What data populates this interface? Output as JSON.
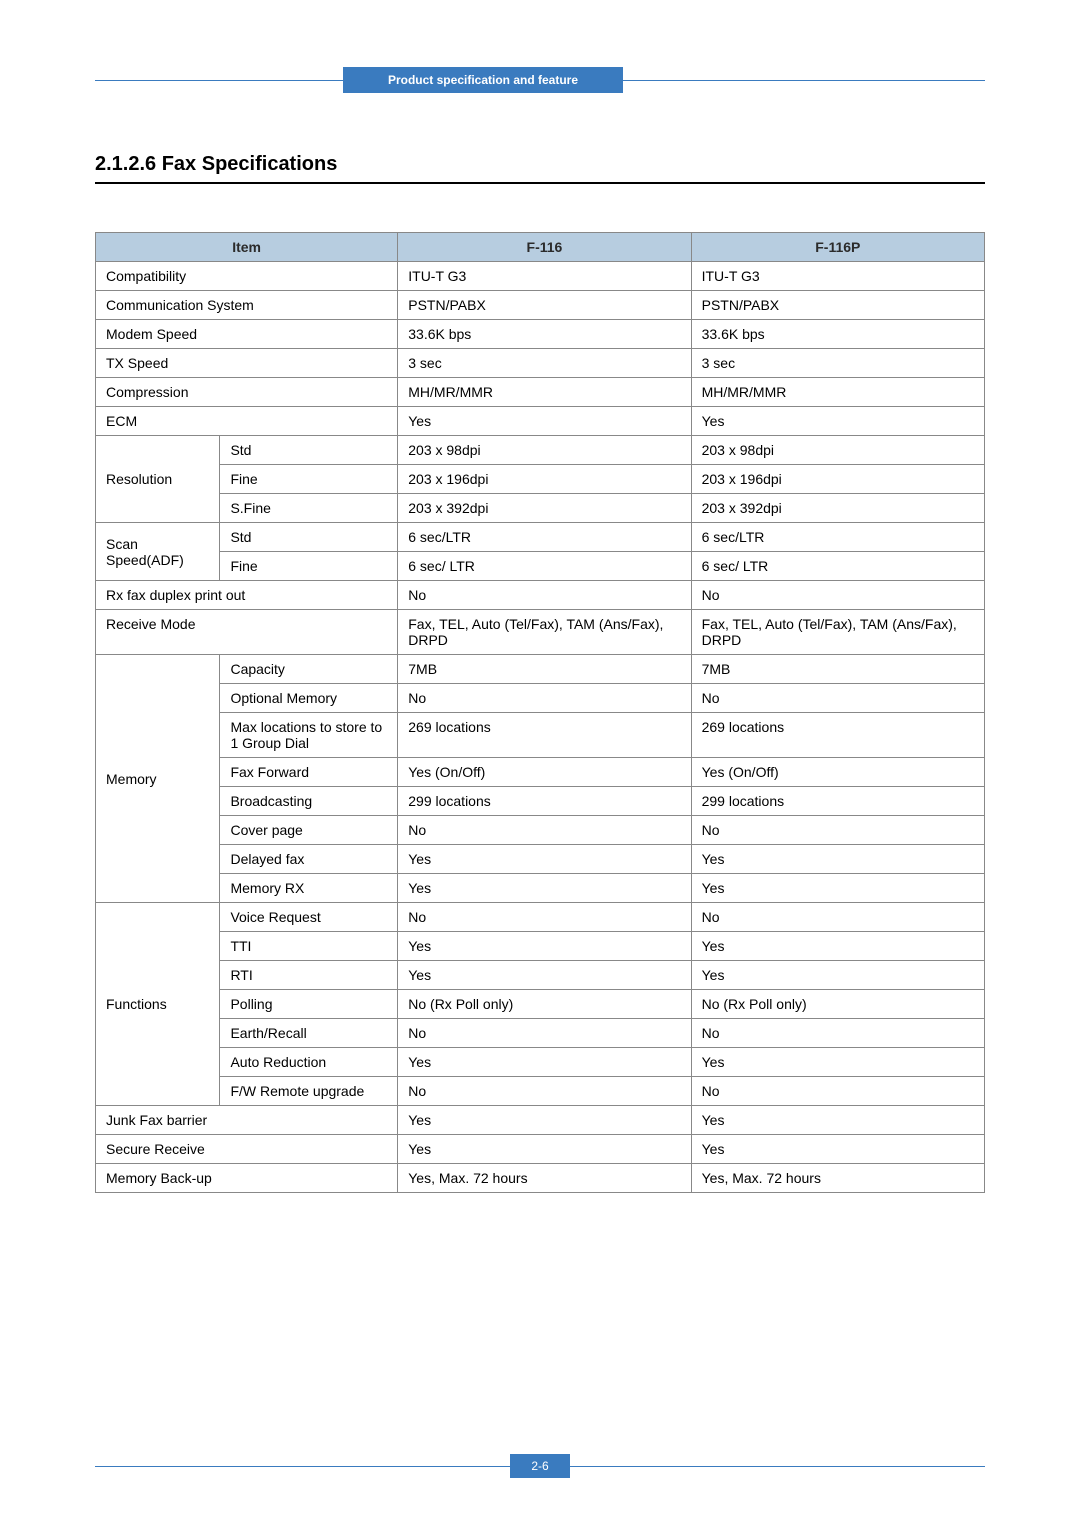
{
  "header": {
    "ribbon": "Product specification and feature"
  },
  "section": {
    "number_title": "2.1.2.6 Fax Specifications"
  },
  "table": {
    "head": {
      "item": "Item",
      "col1": "F-116",
      "col2": "F-116P"
    }
  },
  "rows": {
    "compat": {
      "label": "Compatibility",
      "v1": "ITU-T G3",
      "v2": "ITU-T G3"
    },
    "comm": {
      "label": "Communication System",
      "v1": "PSTN/PABX",
      "v2": "PSTN/PABX"
    },
    "modem": {
      "label": "Modem Speed",
      "v1": "33.6K bps",
      "v2": "33.6K bps"
    },
    "tx": {
      "label": "TX Speed",
      "v1": "3 sec",
      "v2": "3 sec"
    },
    "comp": {
      "label": "Compression",
      "v1": "MH/MR/MMR",
      "v2": "MH/MR/MMR"
    },
    "ecm": {
      "label": "ECM",
      "v1": "Yes",
      "v2": "Yes"
    },
    "res": {
      "label": "Resolution",
      "std": {
        "label": "Std",
        "v1": "203 x 98dpi",
        "v2": "203 x 98dpi"
      },
      "fine": {
        "label": "Fine",
        "v1": "203 x 196dpi",
        "v2": "203 x 196dpi"
      },
      "sfine": {
        "label": "S.Fine",
        "v1": "203 x 392dpi",
        "v2": "203 x 392dpi"
      }
    },
    "scan": {
      "label": "Scan Speed(ADF)",
      "std": {
        "label": "Std",
        "v1": "6 sec/LTR",
        "v2": "6 sec/LTR"
      },
      "fine": {
        "label": "Fine",
        "v1": "6 sec/ LTR",
        "v2": "6 sec/ LTR"
      }
    },
    "duplex": {
      "label": "Rx fax duplex print out",
      "v1": "No",
      "v2": "No"
    },
    "rxmode": {
      "label": "Receive Mode",
      "v1": "Fax, TEL,  Auto (Tel/Fax), TAM (Ans/Fax), DRPD",
      "v2": "Fax, TEL,  Auto (Tel/Fax), TAM (Ans/Fax), DRPD"
    },
    "mem": {
      "label": "Memory",
      "cap": {
        "label": "Capacity",
        "v1": "7MB",
        "v2": "7MB"
      },
      "opt": {
        "label": "Optional Memory",
        "v1": "No",
        "v2": "No"
      },
      "maxloc": {
        "label": "Max locations to store to 1 Group Dial",
        "v1": "269 locations",
        "v2": "269 locations"
      },
      "fwd": {
        "label": "Fax Forward",
        "v1": "Yes (On/Off)",
        "v2": "Yes (On/Off)"
      },
      "bcast": {
        "label": "Broadcasting",
        "v1": "299 locations",
        "v2": "299 locations"
      },
      "cover": {
        "label": "Cover page",
        "v1": "No",
        "v2": "No"
      },
      "delay": {
        "label": "Delayed fax",
        "v1": "Yes",
        "v2": "Yes"
      },
      "mrx": {
        "label": "Memory RX",
        "v1": "Yes",
        "v2": "Yes"
      }
    },
    "func": {
      "label": "Functions",
      "voice": {
        "label": "Voice Request",
        "v1": "No",
        "v2": "No"
      },
      "tti": {
        "label": "TTI",
        "v1": "Yes",
        "v2": "Yes"
      },
      "rti": {
        "label": "RTI",
        "v1": "Yes",
        "v2": "Yes"
      },
      "poll": {
        "label": "Polling",
        "v1": "No (Rx Poll only)",
        "v2": "No (Rx Poll only)"
      },
      "earth": {
        "label": "Earth/Recall",
        "v1": "No",
        "v2": "No"
      },
      "auto": {
        "label": "Auto Reduction",
        "v1": "Yes",
        "v2": "Yes"
      },
      "fw": {
        "label": "F/W Remote upgrade",
        "v1": "No",
        "v2": "No"
      }
    },
    "junk": {
      "label": "Junk Fax barrier",
      "v1": "Yes",
      "v2": "Yes"
    },
    "secure": {
      "label": "Secure Receive",
      "v1": "Yes",
      "v2": "Yes"
    },
    "backup": {
      "label": "Memory Back-up",
      "v1": "Yes, Max. 72 hours",
      "v2": "Yes, Max. 72 hours"
    }
  },
  "footer": {
    "page": "2-6"
  }
}
